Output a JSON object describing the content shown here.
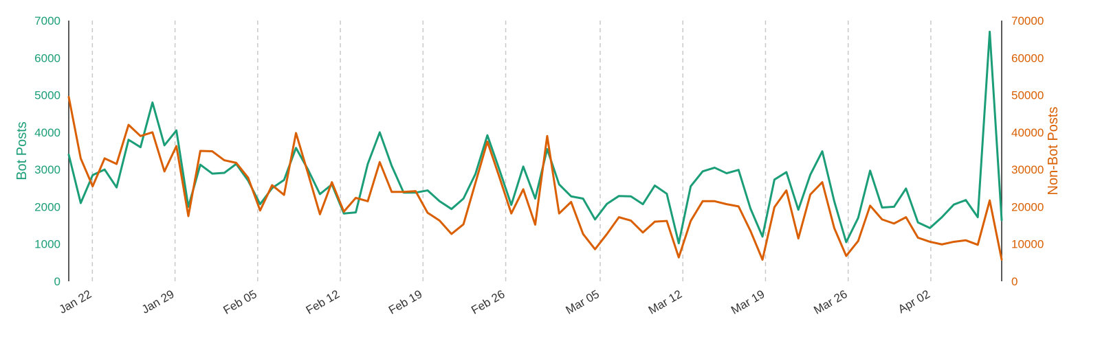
{
  "chart_data": {
    "type": "line",
    "x_start": "2024-01-20",
    "x_tick_labels": [
      "Jan 22",
      "Jan 29",
      "Feb 05",
      "Feb 12",
      "Feb 19",
      "Feb 26",
      "Mar 05",
      "Mar 12",
      "Mar 19",
      "Mar 26",
      "Apr 02"
    ],
    "x_tick_dates": [
      "2024-01-22",
      "2024-01-29",
      "2024-02-05",
      "2024-02-12",
      "2024-02-19",
      "2024-02-26",
      "2024-03-05",
      "2024-03-12",
      "2024-03-19",
      "2024-03-26",
      "2024-04-02"
    ],
    "xlim": [
      "2024-01-20",
      "2024-04-08"
    ],
    "grid": "vertical dashed at x ticks",
    "y_left": {
      "label": "Bot Posts",
      "range": [
        0,
        7000
      ],
      "ticks": [
        "0",
        "1000",
        "2000",
        "3000",
        "4000",
        "5000",
        "6000",
        "7000"
      ],
      "color": "#1b9e77"
    },
    "y_right": {
      "label": "Non-Bot Posts",
      "range": [
        0,
        70000
      ],
      "ticks": [
        "0",
        "10000",
        "20000",
        "30000",
        "40000",
        "50000",
        "60000",
        "70000"
      ],
      "color": "#d95f02"
    },
    "series": [
      {
        "name": "Bot Posts",
        "axis": "left",
        "color": "#1b9e77",
        "values": [
          3400,
          2100,
          2850,
          3000,
          2520,
          3800,
          3600,
          4800,
          3650,
          4050,
          2000,
          3130,
          2890,
          2910,
          3150,
          2700,
          2070,
          2500,
          2720,
          3580,
          3000,
          2340,
          2600,
          1820,
          1850,
          3150,
          4000,
          3100,
          2380,
          2380,
          2440,
          2150,
          1940,
          2220,
          2880,
          3920,
          3000,
          2050,
          3080,
          2220,
          3550,
          2600,
          2280,
          2220,
          1660,
          2080,
          2290,
          2280,
          2070,
          2570,
          2350,
          1020,
          2550,
          2950,
          3050,
          2900,
          2990,
          1950,
          1200,
          2730,
          2930,
          1920,
          2860,
          3490,
          2150,
          1050,
          1700,
          2970,
          1980,
          2000,
          2490,
          1580,
          1430,
          1720,
          2060,
          2180,
          1720,
          6700,
          1640
        ]
      },
      {
        "name": "Non-Bot Posts",
        "axis": "right",
        "color": "#d95f02",
        "values": [
          49500,
          33000,
          25500,
          33000,
          31500,
          42000,
          39000,
          40000,
          29500,
          36300,
          17500,
          35000,
          34900,
          32500,
          31800,
          27800,
          19000,
          25800,
          23200,
          39800,
          29000,
          18000,
          26600,
          18700,
          22400,
          21500,
          32000,
          24000,
          24000,
          24200,
          18400,
          16300,
          12700,
          15300,
          26400,
          37500,
          28000,
          18200,
          24700,
          15200,
          39000,
          18200,
          21300,
          12700,
          8600,
          12700,
          17200,
          16300,
          13100,
          16000,
          16200,
          6400,
          16200,
          21500,
          21500,
          20700,
          20100,
          13500,
          5800,
          19900,
          24400,
          11500,
          23300,
          26600,
          14300,
          6800,
          10800,
          20300,
          16600,
          15500,
          17200,
          11700,
          10600,
          9900,
          10600,
          11000,
          9800,
          21700,
          5800
        ]
      }
    ]
  }
}
